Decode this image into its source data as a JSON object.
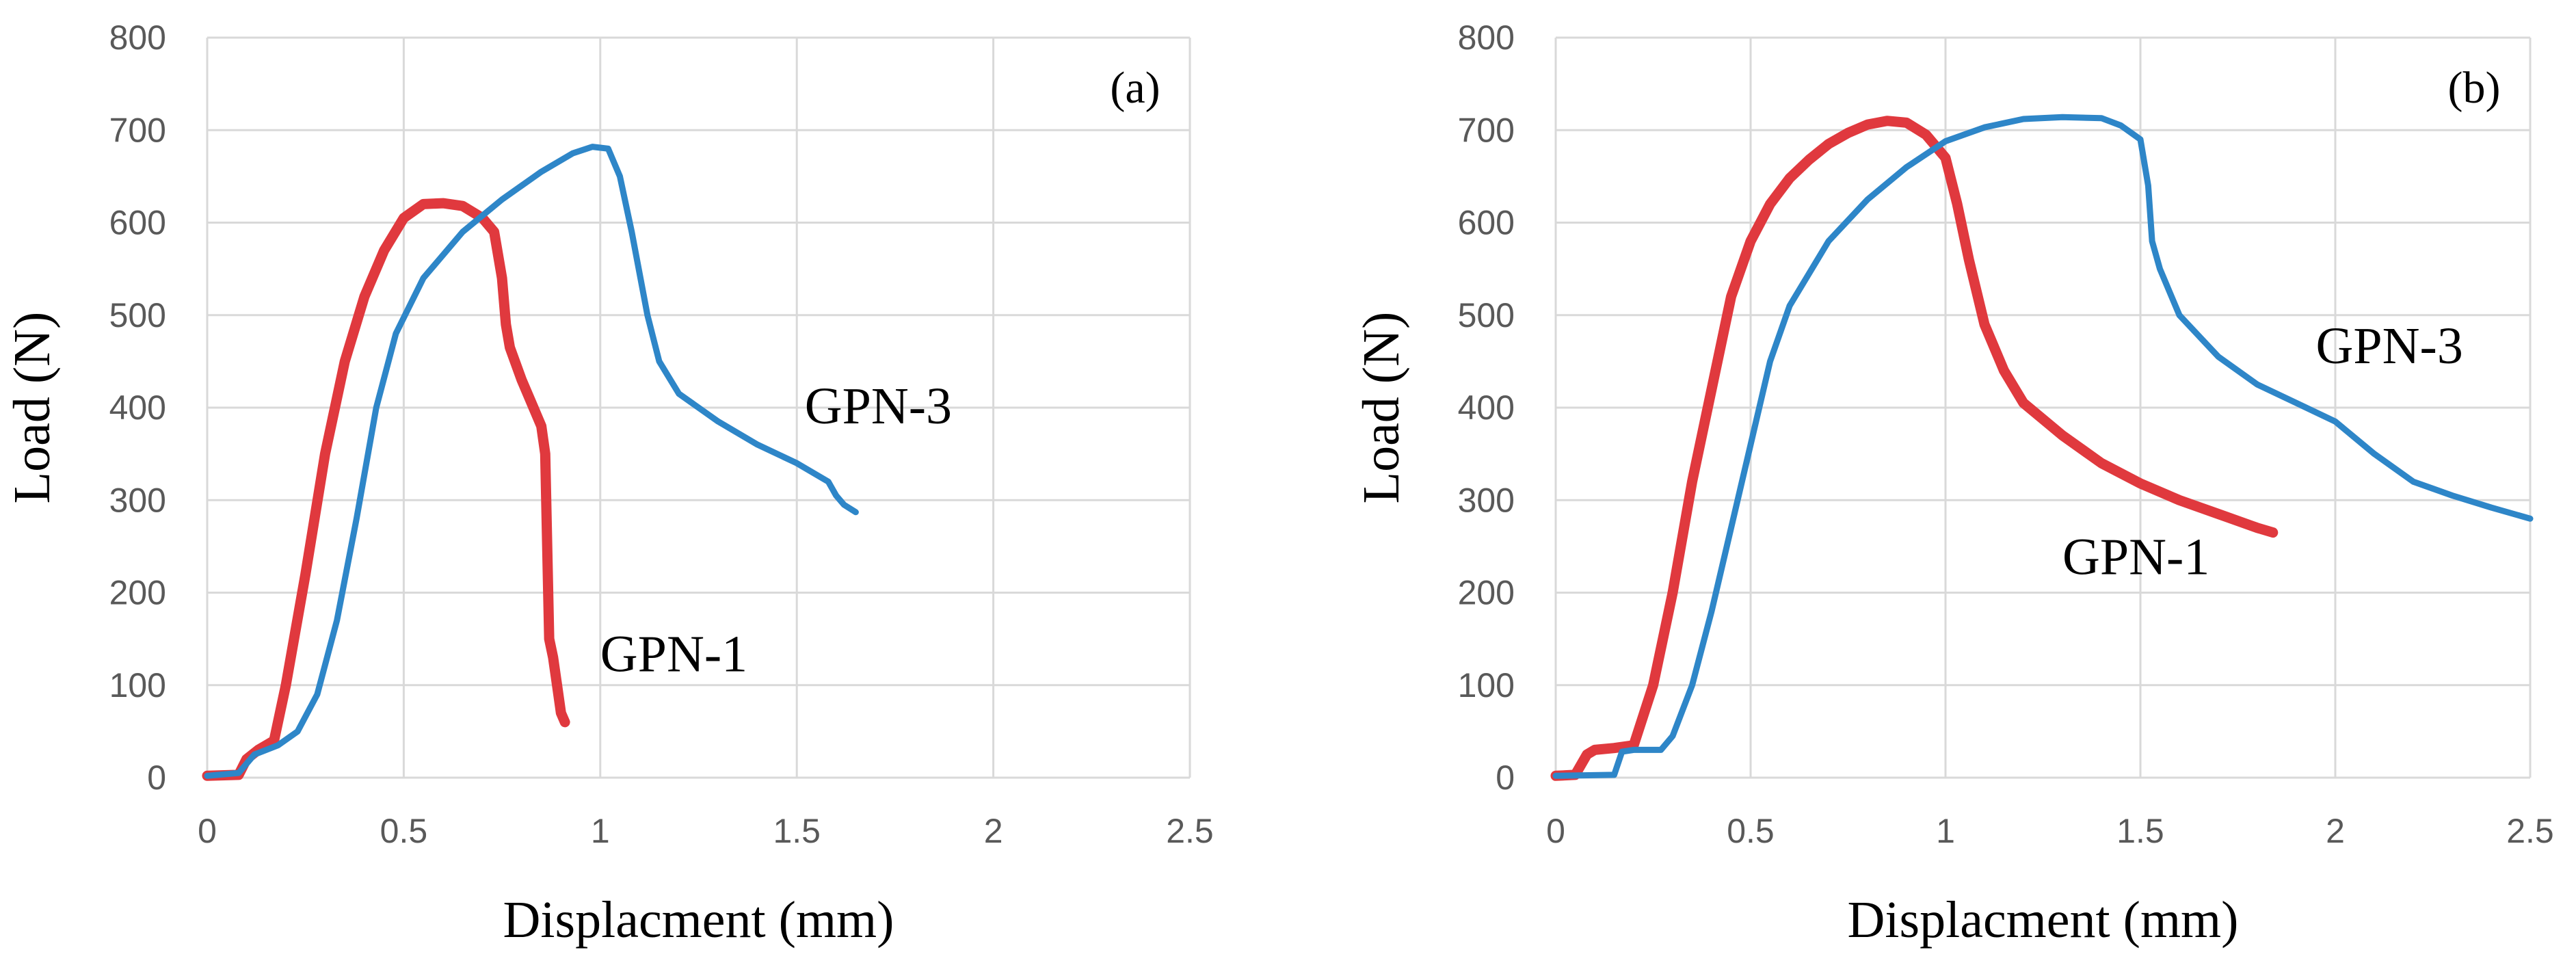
{
  "chart_data": [
    {
      "type": "line",
      "panel_label": "(a)",
      "xlabel": "Displacment (mm)",
      "ylabel": "Load (N)",
      "xlim": [
        0,
        2.5
      ],
      "ylim": [
        0,
        800
      ],
      "xticks": [
        "0",
        "0.5",
        "1",
        "1.5",
        "2",
        "2.5"
      ],
      "yticks": [
        "0",
        "100",
        "200",
        "300",
        "400",
        "500",
        "600",
        "700",
        "800"
      ],
      "grid": true,
      "legend": "none",
      "series": [
        {
          "name": "GPN-1",
          "color": "#e0393e",
          "width": 15,
          "points": [
            [
              0,
              2
            ],
            [
              0.08,
              3
            ],
            [
              0.1,
              20
            ],
            [
              0.13,
              30
            ],
            [
              0.17,
              40
            ],
            [
              0.2,
              100
            ],
            [
              0.25,
              220
            ],
            [
              0.3,
              350
            ],
            [
              0.35,
              450
            ],
            [
              0.4,
              520
            ],
            [
              0.45,
              570
            ],
            [
              0.5,
              605
            ],
            [
              0.55,
              620
            ],
            [
              0.6,
              621
            ],
            [
              0.65,
              618
            ],
            [
              0.7,
              605
            ],
            [
              0.73,
              590
            ],
            [
              0.75,
              540
            ],
            [
              0.76,
              490
            ],
            [
              0.77,
              465
            ],
            [
              0.8,
              430
            ],
            [
              0.83,
              400
            ],
            [
              0.85,
              380
            ],
            [
              0.86,
              350
            ],
            [
              0.87,
              150
            ],
            [
              0.88,
              130
            ],
            [
              0.89,
              100
            ],
            [
              0.9,
              70
            ],
            [
              0.91,
              60
            ]
          ]
        },
        {
          "name": "GPN-3",
          "color": "#2e86c8",
          "width": 9,
          "points": [
            [
              0,
              2
            ],
            [
              0.08,
              5
            ],
            [
              0.12,
              25
            ],
            [
              0.18,
              35
            ],
            [
              0.23,
              50
            ],
            [
              0.28,
              90
            ],
            [
              0.33,
              170
            ],
            [
              0.38,
              280
            ],
            [
              0.43,
              400
            ],
            [
              0.48,
              480
            ],
            [
              0.55,
              540
            ],
            [
              0.65,
              590
            ],
            [
              0.75,
              625
            ],
            [
              0.85,
              655
            ],
            [
              0.93,
              675
            ],
            [
              0.98,
              682
            ],
            [
              1.02,
              680
            ],
            [
              1.05,
              650
            ],
            [
              1.08,
              590
            ],
            [
              1.12,
              500
            ],
            [
              1.15,
              450
            ],
            [
              1.2,
              415
            ],
            [
              1.3,
              385
            ],
            [
              1.4,
              360
            ],
            [
              1.5,
              340
            ],
            [
              1.58,
              320
            ],
            [
              1.6,
              305
            ],
            [
              1.62,
              295
            ],
            [
              1.65,
              287
            ]
          ]
        }
      ],
      "annotations": [
        {
          "text": "GPN-3",
          "x": 1.52,
          "y": 383
        },
        {
          "text": "GPN-1",
          "x": 1.0,
          "y": 115
        }
      ]
    },
    {
      "type": "line",
      "panel_label": "(b)",
      "xlabel": "Displacment (mm)",
      "ylabel": "Load (N)",
      "xlim": [
        0,
        2.5
      ],
      "ylim": [
        0,
        800
      ],
      "xticks": [
        "0",
        "0.5",
        "1",
        "1.5",
        "2",
        "2.5"
      ],
      "yticks": [
        "0",
        "100",
        "200",
        "300",
        "400",
        "500",
        "600",
        "700",
        "800"
      ],
      "grid": true,
      "legend": "none",
      "series": [
        {
          "name": "GPN-1",
          "color": "#e0393e",
          "width": 15,
          "points": [
            [
              0,
              2
            ],
            [
              0.05,
              3
            ],
            [
              0.08,
              25
            ],
            [
              0.1,
              30
            ],
            [
              0.15,
              32
            ],
            [
              0.2,
              35
            ],
            [
              0.25,
              100
            ],
            [
              0.3,
              200
            ],
            [
              0.35,
              320
            ],
            [
              0.4,
              420
            ],
            [
              0.45,
              520
            ],
            [
              0.5,
              580
            ],
            [
              0.55,
              620
            ],
            [
              0.6,
              648
            ],
            [
              0.65,
              668
            ],
            [
              0.7,
              685
            ],
            [
              0.75,
              697
            ],
            [
              0.8,
              706
            ],
            [
              0.85,
              710
            ],
            [
              0.9,
              708
            ],
            [
              0.95,
              695
            ],
            [
              1.0,
              670
            ],
            [
              1.03,
              620
            ],
            [
              1.06,
              560
            ],
            [
              1.1,
              490
            ],
            [
              1.15,
              440
            ],
            [
              1.2,
              405
            ],
            [
              1.3,
              370
            ],
            [
              1.4,
              340
            ],
            [
              1.5,
              318
            ],
            [
              1.6,
              300
            ],
            [
              1.7,
              285
            ],
            [
              1.8,
              270
            ],
            [
              1.84,
              265
            ]
          ]
        },
        {
          "name": "GPN-3",
          "color": "#2e86c8",
          "width": 9,
          "points": [
            [
              0,
              2
            ],
            [
              0.15,
              3
            ],
            [
              0.17,
              28
            ],
            [
              0.2,
              30
            ],
            [
              0.27,
              30
            ],
            [
              0.3,
              45
            ],
            [
              0.35,
              100
            ],
            [
              0.4,
              180
            ],
            [
              0.45,
              270
            ],
            [
              0.5,
              360
            ],
            [
              0.55,
              450
            ],
            [
              0.6,
              510
            ],
            [
              0.7,
              580
            ],
            [
              0.8,
              625
            ],
            [
              0.9,
              660
            ],
            [
              1.0,
              688
            ],
            [
              1.1,
              703
            ],
            [
              1.2,
              712
            ],
            [
              1.3,
              714
            ],
            [
              1.4,
              713
            ],
            [
              1.45,
              705
            ],
            [
              1.5,
              690
            ],
            [
              1.52,
              640
            ],
            [
              1.53,
              580
            ],
            [
              1.55,
              550
            ],
            [
              1.6,
              500
            ],
            [
              1.7,
              455
            ],
            [
              1.8,
              425
            ],
            [
              1.9,
              405
            ],
            [
              2.0,
              385
            ],
            [
              2.1,
              350
            ],
            [
              2.2,
              320
            ],
            [
              2.3,
              305
            ],
            [
              2.4,
              292
            ],
            [
              2.5,
              280
            ]
          ]
        }
      ],
      "annotations": [
        {
          "text": "GPN-3",
          "x": 1.95,
          "y": 448
        },
        {
          "text": "GPN-1",
          "x": 1.3,
          "y": 220
        }
      ]
    }
  ]
}
